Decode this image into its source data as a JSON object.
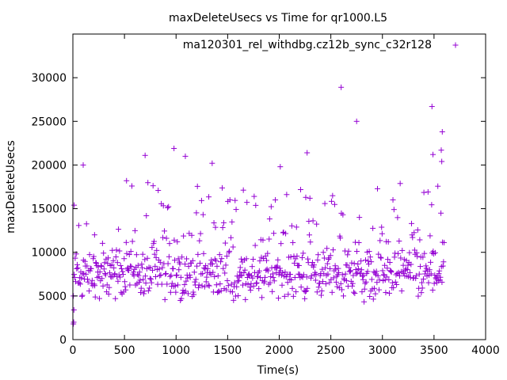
{
  "chart_data": {
    "type": "scatter",
    "title": "maxDeleteUsecs vs Time for qr1000.L5",
    "xlabel": "Time(s)",
    "ylabel": "maxDeleteUsecs",
    "xlim": [
      0,
      4000
    ],
    "ylim": [
      0,
      35000
    ],
    "xticks": [
      0,
      500,
      1000,
      1500,
      2000,
      2500,
      3000,
      3500,
      4000
    ],
    "yticks": [
      0,
      5000,
      10000,
      15000,
      20000,
      25000,
      30000
    ],
    "grid": false,
    "legend_position": "top-right",
    "series": [
      {
        "name": "ma120301_rel_withdbg.cz12b_sync_c32r128",
        "color": "#9400d3",
        "marker": "plus",
        "notable_points": [
          {
            "x": 5,
            "y": 1800
          },
          {
            "x": 8,
            "y": 2000
          },
          {
            "x": 10,
            "y": 3400
          },
          {
            "x": 5,
            "y": 5000
          },
          {
            "x": 12,
            "y": 15400
          },
          {
            "x": 100,
            "y": 20000
          },
          {
            "x": 210,
            "y": 12000
          },
          {
            "x": 520,
            "y": 18200
          },
          {
            "x": 700,
            "y": 21100
          },
          {
            "x": 980,
            "y": 21900
          },
          {
            "x": 1090,
            "y": 21000
          },
          {
            "x": 1350,
            "y": 20200
          },
          {
            "x": 2010,
            "y": 19800
          },
          {
            "x": 2270,
            "y": 21400
          },
          {
            "x": 2600,
            "y": 28900
          },
          {
            "x": 2750,
            "y": 25000
          },
          {
            "x": 3480,
            "y": 26700
          },
          {
            "x": 3490,
            "y": 21200
          },
          {
            "x": 3580,
            "y": 23800
          },
          {
            "x": 3570,
            "y": 21700
          },
          {
            "x": 3575,
            "y": 20400
          }
        ],
        "bulk": {
          "x_range": [
            0,
            3600
          ],
          "typical_y_range": [
            4000,
            11000
          ],
          "sparse_y_range": [
            11000,
            18000
          ],
          "sample_interval_s": 5
        }
      }
    ]
  }
}
